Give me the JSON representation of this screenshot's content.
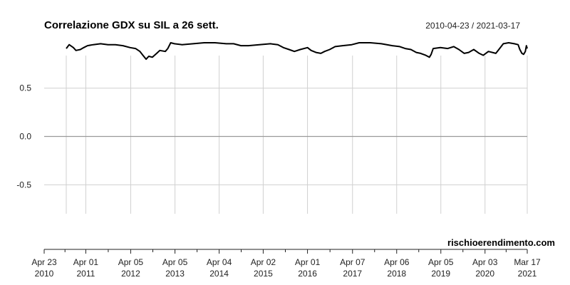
{
  "chart_data": {
    "type": "line",
    "title": "Correlazione GDX su SIL a 26 sett.",
    "date_range": "2010-04-23 / 2021-03-17",
    "credit": "rischioerendimento.com",
    "ylim": [
      -0.8,
      0.97
    ],
    "y_ticks": [
      {
        "value": 0.5,
        "label": "0.5"
      },
      {
        "value": 0.0,
        "label": "0.0"
      },
      {
        "value": -0.5,
        "label": "-0.5"
      }
    ],
    "x_start": "2010-04-23",
    "x_end": "2021-03-17",
    "x_ticks": [
      {
        "date": "2010-04-23",
        "label1": "Apr 23",
        "label2": "2010"
      },
      {
        "date": "2011-04-01",
        "label1": "Apr 01",
        "label2": "2011"
      },
      {
        "date": "2012-04-05",
        "label1": "Apr 05",
        "label2": "2012"
      },
      {
        "date": "2013-04-05",
        "label1": "Apr 05",
        "label2": "2013"
      },
      {
        "date": "2014-04-04",
        "label1": "Apr 04",
        "label2": "2014"
      },
      {
        "date": "2015-04-02",
        "label1": "Apr 02",
        "label2": "2015"
      },
      {
        "date": "2016-04-01",
        "label1": "Apr 01",
        "label2": "2016"
      },
      {
        "date": "2017-04-07",
        "label1": "Apr 07",
        "label2": "2017"
      },
      {
        "date": "2018-04-06",
        "label1": "Apr 06",
        "label2": "2018"
      },
      {
        "date": "2019-04-05",
        "label1": "Apr 05",
        "label2": "2019"
      },
      {
        "date": "2020-04-03",
        "label1": "Apr 03",
        "label2": "2020"
      },
      {
        "date": "2021-03-17",
        "label1": "Mar 17",
        "label2": "2021"
      }
    ],
    "grid": true,
    "series": [
      {
        "color": "#000000",
        "points": [
          [
            "2010-10-22",
            0.91
          ],
          [
            "2010-11-15",
            0.95
          ],
          [
            "2010-12-20",
            0.92
          ],
          [
            "2011-01-10",
            0.89
          ],
          [
            "2011-02-15",
            0.9
          ],
          [
            "2011-03-15",
            0.92
          ],
          [
            "2011-04-15",
            0.94
          ],
          [
            "2011-06-01",
            0.95
          ],
          [
            "2011-08-01",
            0.96
          ],
          [
            "2011-10-01",
            0.95
          ],
          [
            "2011-12-01",
            0.95
          ],
          [
            "2012-02-01",
            0.94
          ],
          [
            "2012-04-01",
            0.92
          ],
          [
            "2012-05-15",
            0.91
          ],
          [
            "2012-06-20",
            0.88
          ],
          [
            "2012-07-15",
            0.84
          ],
          [
            "2012-08-10",
            0.8
          ],
          [
            "2012-09-01",
            0.83
          ],
          [
            "2012-10-01",
            0.82
          ],
          [
            "2012-11-05",
            0.86
          ],
          [
            "2012-12-01",
            0.89
          ],
          [
            "2013-01-15",
            0.88
          ],
          [
            "2013-02-05",
            0.91
          ],
          [
            "2013-03-01",
            0.97
          ],
          [
            "2013-04-01",
            0.96
          ],
          [
            "2013-06-01",
            0.95
          ],
          [
            "2013-09-01",
            0.96
          ],
          [
            "2013-12-01",
            0.97
          ],
          [
            "2014-03-01",
            0.97
          ],
          [
            "2014-06-01",
            0.96
          ],
          [
            "2014-08-01",
            0.96
          ],
          [
            "2014-10-01",
            0.94
          ],
          [
            "2014-12-01",
            0.94
          ],
          [
            "2015-03-01",
            0.95
          ],
          [
            "2015-06-01",
            0.96
          ],
          [
            "2015-08-01",
            0.95
          ],
          [
            "2015-09-15",
            0.92
          ],
          [
            "2015-11-01",
            0.9
          ],
          [
            "2015-12-15",
            0.88
          ],
          [
            "2016-02-01",
            0.9
          ],
          [
            "2016-04-01",
            0.92
          ],
          [
            "2016-05-01",
            0.89
          ],
          [
            "2016-06-10",
            0.87
          ],
          [
            "2016-07-20",
            0.86
          ],
          [
            "2016-08-20",
            0.88
          ],
          [
            "2016-10-01",
            0.9
          ],
          [
            "2016-11-15",
            0.93
          ],
          [
            "2017-01-15",
            0.94
          ],
          [
            "2017-04-01",
            0.95
          ],
          [
            "2017-06-01",
            0.97
          ],
          [
            "2017-09-01",
            0.97
          ],
          [
            "2017-12-01",
            0.96
          ],
          [
            "2018-03-01",
            0.94
          ],
          [
            "2018-05-01",
            0.93
          ],
          [
            "2018-06-15",
            0.91
          ],
          [
            "2018-08-01",
            0.9
          ],
          [
            "2018-09-15",
            0.87
          ],
          [
            "2018-10-20",
            0.86
          ],
          [
            "2018-12-01",
            0.84
          ],
          [
            "2019-01-01",
            0.82
          ],
          [
            "2019-01-15",
            0.85
          ],
          [
            "2019-02-01",
            0.91
          ],
          [
            "2019-04-01",
            0.92
          ],
          [
            "2019-06-01",
            0.91
          ],
          [
            "2019-07-20",
            0.93
          ],
          [
            "2019-09-01",
            0.9
          ],
          [
            "2019-10-15",
            0.86
          ],
          [
            "2019-11-20",
            0.87
          ],
          [
            "2020-01-01",
            0.9
          ],
          [
            "2020-02-15",
            0.86
          ],
          [
            "2020-03-20",
            0.84
          ],
          [
            "2020-05-01",
            0.88
          ],
          [
            "2020-07-01",
            0.86
          ],
          [
            "2020-08-01",
            0.91
          ],
          [
            "2020-09-01",
            0.96
          ],
          [
            "2020-10-15",
            0.97
          ],
          [
            "2020-12-01",
            0.96
          ],
          [
            "2021-01-01",
            0.95
          ],
          [
            "2021-01-15",
            0.9
          ],
          [
            "2021-02-01",
            0.86
          ],
          [
            "2021-02-15",
            0.85
          ],
          [
            "2021-03-01",
            0.88
          ],
          [
            "2021-03-10",
            0.94
          ],
          [
            "2021-03-17",
            0.91
          ]
        ]
      }
    ]
  }
}
